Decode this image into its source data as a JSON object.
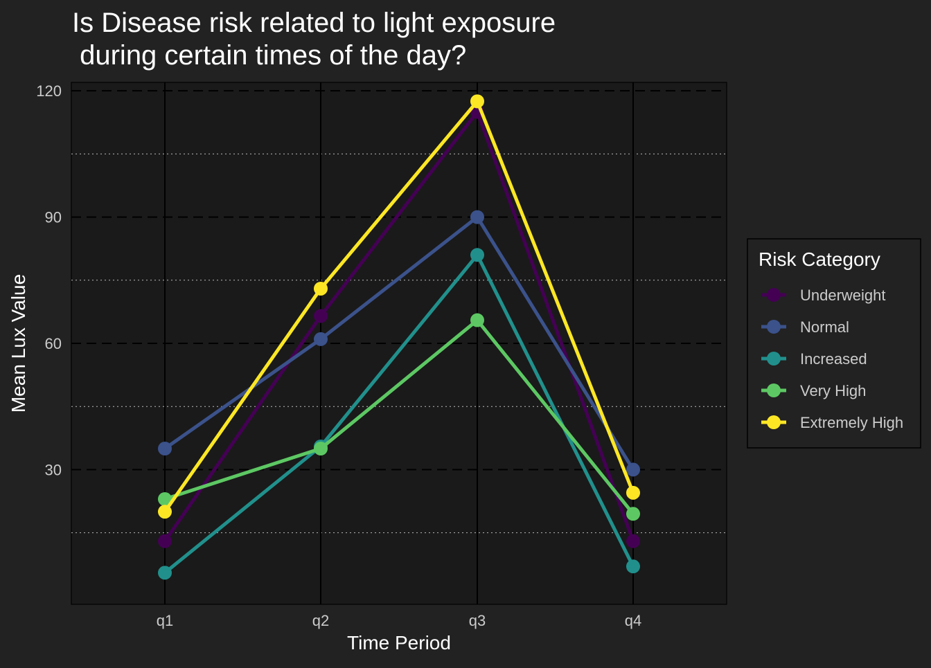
{
  "chart_data": {
    "type": "line",
    "title": "Is Disease risk related to light exposure\n during certain times of the day?",
    "xlabel": "Time Period",
    "ylabel": "Mean Lux Value",
    "categories": [
      "q1",
      "q2",
      "q3",
      "q4"
    ],
    "ylim": [
      -2,
      122
    ],
    "yticks": [
      30,
      60,
      90,
      120
    ],
    "y_minor_ticks": [
      15,
      45,
      75,
      105
    ],
    "grid": true,
    "legend": {
      "title": "Risk Category",
      "placement": "right"
    },
    "series": [
      {
        "name": "Underweight",
        "color": "#440154",
        "values": [
          13,
          66.5,
          115,
          13
        ]
      },
      {
        "name": "Normal",
        "color": "#3B528B",
        "values": [
          35,
          61,
          90,
          30
        ]
      },
      {
        "name": "Increased",
        "color": "#21908C",
        "values": [
          5.5,
          35.5,
          81,
          7
        ]
      },
      {
        "name": "Very High",
        "color": "#5DC863",
        "values": [
          23,
          35,
          65.5,
          19.5
        ]
      },
      {
        "name": "Extremely High",
        "color": "#FDE725",
        "values": [
          20,
          73,
          117.5,
          24.5
        ]
      }
    ]
  },
  "colors": {
    "background": "#222222",
    "panel": "#1a1a1a",
    "text": "#ffffff",
    "tick_text": "#cccccc"
  }
}
